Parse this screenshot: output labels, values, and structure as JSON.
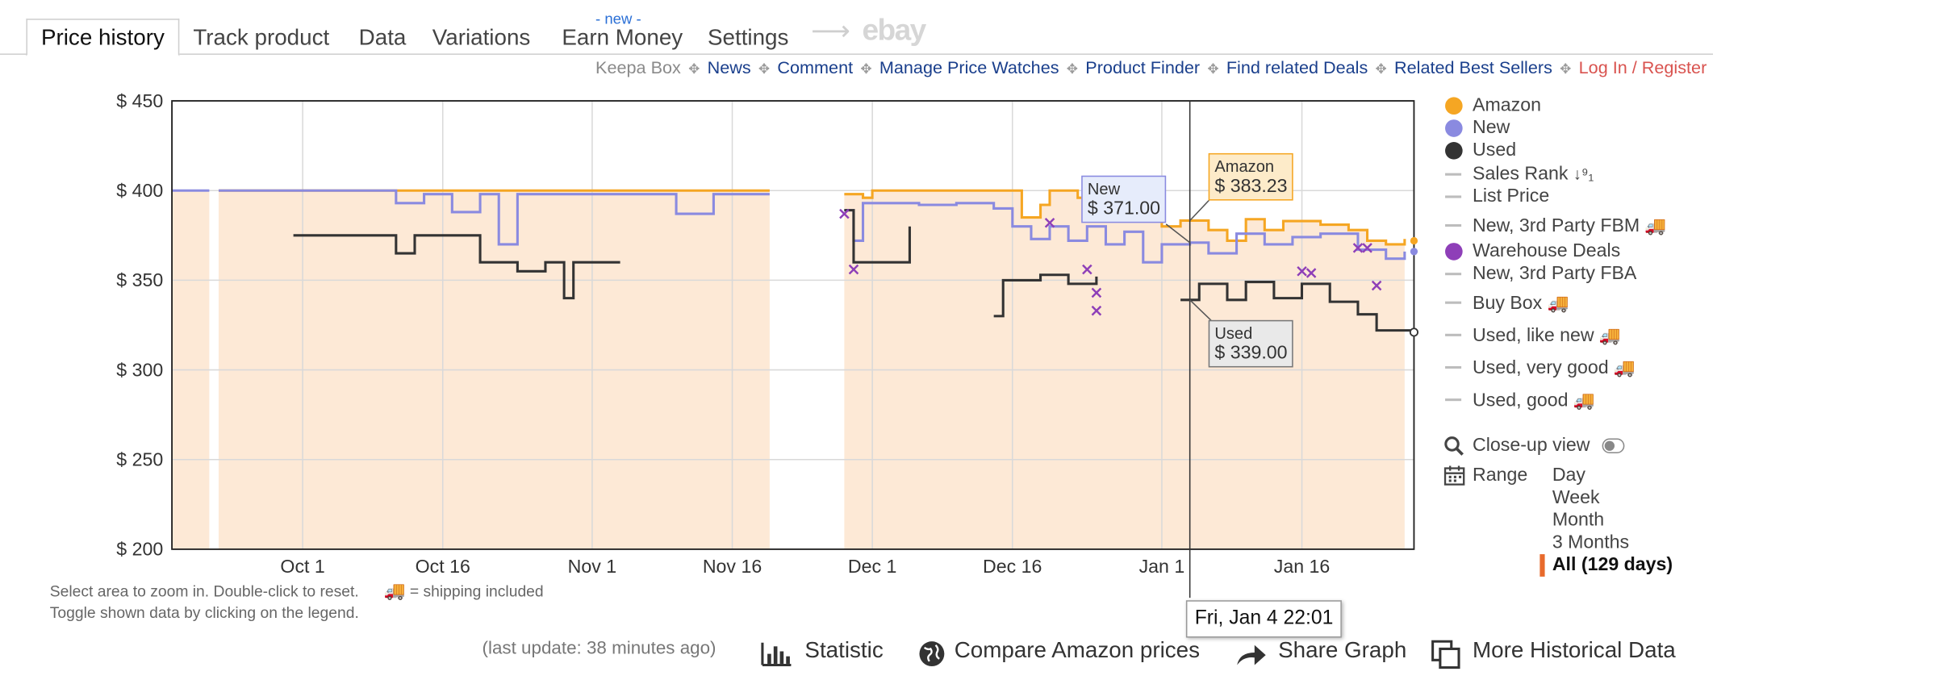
{
  "tabs": {
    "price_history": "Price history",
    "track_product": "Track product",
    "data": "Data",
    "variations": "Variations",
    "earn_money": "Earn Money",
    "earn_money_badge": "- new -",
    "settings": "Settings",
    "ebay": "ebay"
  },
  "links": {
    "keepa_box": "Keepa Box",
    "news": "News",
    "comment": "Comment",
    "manage_price_watches": "Manage Price Watches",
    "product_finder": "Product Finder",
    "find_related_deals": "Find related Deals",
    "related_best_sellers": "Related Best Sellers",
    "login": "Log In / Register"
  },
  "legend": {
    "amazon": "Amazon",
    "new": "New",
    "used": "Used",
    "sales_rank": "Sales Rank",
    "list_price": "List Price",
    "new_3p_fbm": "New, 3rd Party FBM",
    "warehouse_deals": "Warehouse Deals",
    "new_3p_fba": "New, 3rd Party FBA",
    "buy_box": "Buy Box",
    "used_like_new": "Used, like new",
    "used_very_good": "Used, very good",
    "used_good": "Used, good",
    "close_up_view": "Close-up view",
    "range_label": "Range"
  },
  "range_options": [
    "Day",
    "Week",
    "Month",
    "3 Months",
    "All (129 days)"
  ],
  "range_selected": "All (129 days)",
  "notes": {
    "zoom": "Select area to zoom in. Double-click to reset.",
    "shipping": "= shipping included",
    "toggle": "Toggle shown data by clicking on the legend."
  },
  "bottom": {
    "last_update": "(last update: 38 minutes ago)",
    "statistic": "Statistic",
    "compare": "Compare Amazon prices",
    "share": "Share Graph",
    "more": "More Historical Data"
  },
  "tooltips": {
    "amazon_label": "Amazon",
    "amazon_value": "$ 383.23",
    "new_label": "New",
    "new_value": "$ 371.00",
    "used_label": "Used",
    "used_value": "$ 339.00",
    "date": "Fri, Jan 4 22:01"
  },
  "colors": {
    "amazon": "#f5a623",
    "new": "#8a8ae0",
    "used": "#333333",
    "warehouse": "#8e3fb8",
    "fill": "#fde9d6"
  },
  "chart_data": {
    "type": "line",
    "x_domain": [
      "2018-09-17",
      "2019-01-28"
    ],
    "ylim": [
      200,
      450
    ],
    "yticks": [
      200,
      250,
      300,
      350,
      400,
      450
    ],
    "ytick_labels": [
      "$ 200",
      "$ 250",
      "$ 300",
      "$ 350",
      "$ 400",
      "$ 450"
    ],
    "xticks": [
      {
        "date": "2018-10-01",
        "label": "Oct 1"
      },
      {
        "date": "2018-10-16",
        "label": "Oct 16"
      },
      {
        "date": "2018-11-01",
        "label": "Nov 1"
      },
      {
        "date": "2018-11-16",
        "label": "Nov 16"
      },
      {
        "date": "2018-12-01",
        "label": "Dec 1"
      },
      {
        "date": "2018-12-16",
        "label": "Dec 16"
      },
      {
        "date": "2019-01-01",
        "label": "Jan 1"
      },
      {
        "date": "2019-01-16",
        "label": "Jan 16"
      }
    ],
    "amazon_segments": [
      [
        [
          "2018-09-22",
          400
        ],
        [
          "2018-11-20",
          400
        ]
      ],
      [
        [
          "2018-11-28",
          398
        ],
        [
          "2018-11-30",
          396
        ],
        [
          "2018-12-01",
          400
        ],
        [
          "2018-12-16",
          400
        ],
        [
          "2018-12-17",
          385
        ],
        [
          "2018-12-19",
          392
        ],
        [
          "2018-12-20",
          400
        ],
        [
          "2018-12-23",
          396
        ],
        [
          "2018-12-26",
          395
        ],
        [
          "2018-12-28",
          386
        ],
        [
          "2018-12-30",
          390
        ],
        [
          "2019-01-01",
          380
        ],
        [
          "2019-01-03",
          383.23
        ],
        [
          "2019-01-06",
          378
        ],
        [
          "2019-01-08",
          372
        ],
        [
          "2019-01-10",
          384
        ],
        [
          "2019-01-12",
          378
        ],
        [
          "2019-01-14",
          383
        ],
        [
          "2019-01-18",
          381
        ],
        [
          "2019-01-21",
          378
        ],
        [
          "2019-01-23",
          372
        ],
        [
          "2019-01-25",
          370
        ],
        [
          "2019-01-27",
          373
        ]
      ]
    ],
    "new_segments": [
      [
        [
          "2018-09-17",
          400
        ],
        [
          "2018-09-21",
          400
        ]
      ],
      [
        [
          "2018-09-22",
          400
        ],
        [
          "2018-10-08",
          400
        ],
        [
          "2018-10-11",
          393
        ],
        [
          "2018-10-14",
          398
        ],
        [
          "2018-10-17",
          388
        ],
        [
          "2018-10-20",
          398
        ],
        [
          "2018-10-22",
          370
        ],
        [
          "2018-10-24",
          398
        ],
        [
          "2018-11-08",
          398
        ],
        [
          "2018-11-10",
          387
        ],
        [
          "2018-11-14",
          398
        ],
        [
          "2018-11-20",
          398
        ]
      ],
      [
        [
          "2018-11-28",
          389
        ],
        [
          "2018-11-29",
          372
        ],
        [
          "2018-11-30",
          393
        ],
        [
          "2018-12-06",
          392
        ],
        [
          "2018-12-10",
          393
        ],
        [
          "2018-12-14",
          390
        ],
        [
          "2018-12-16",
          380
        ],
        [
          "2018-12-18",
          373
        ],
        [
          "2018-12-20",
          380
        ],
        [
          "2018-12-22",
          372
        ],
        [
          "2018-12-24",
          380
        ],
        [
          "2018-12-26",
          370
        ],
        [
          "2018-12-28",
          377
        ],
        [
          "2018-12-30",
          360
        ],
        [
          "2019-01-01",
          370
        ],
        [
          "2019-01-04",
          371
        ],
        [
          "2019-01-06",
          365
        ],
        [
          "2019-01-09",
          376
        ],
        [
          "2019-01-12",
          370
        ],
        [
          "2019-01-15",
          374
        ],
        [
          "2019-01-18",
          376
        ],
        [
          "2019-01-22",
          367
        ],
        [
          "2019-01-25",
          362
        ],
        [
          "2019-01-27",
          366
        ]
      ]
    ],
    "used_segments": [
      [
        [
          "2018-09-30",
          375
        ],
        [
          "2018-10-09",
          375
        ],
        [
          "2018-10-11",
          365
        ],
        [
          "2018-10-13",
          375
        ],
        [
          "2018-10-18",
          375
        ],
        [
          "2018-10-20",
          360
        ],
        [
          "2018-10-24",
          355
        ],
        [
          "2018-10-27",
          360
        ],
        [
          "2018-10-29",
          340
        ],
        [
          "2018-10-30",
          360
        ],
        [
          "2018-11-04",
          360
        ]
      ],
      [
        [
          "2018-11-28",
          389
        ],
        [
          "2018-11-29",
          360
        ],
        [
          "2018-12-05",
          380
        ]
      ],
      [
        [
          "2018-12-14",
          330
        ],
        [
          "2018-12-15",
          350
        ],
        [
          "2018-12-19",
          353
        ],
        [
          "2018-12-22",
          348
        ],
        [
          "2018-12-25",
          352
        ]
      ],
      [
        [
          "2019-01-03",
          339
        ],
        [
          "2019-01-05",
          348
        ],
        [
          "2019-01-08",
          339
        ],
        [
          "2019-01-10",
          349
        ],
        [
          "2019-01-13",
          340
        ],
        [
          "2019-01-16",
          348
        ],
        [
          "2019-01-19",
          338
        ],
        [
          "2019-01-22",
          331
        ],
        [
          "2019-01-24",
          322
        ],
        [
          "2019-01-28",
          321
        ]
      ]
    ],
    "warehouse_points": [
      [
        "2018-11-28",
        387
      ],
      [
        "2018-11-29",
        356
      ],
      [
        "2018-12-20",
        382
      ],
      [
        "2018-12-24",
        356
      ],
      [
        "2018-12-25",
        343
      ],
      [
        "2018-12-25",
        333
      ],
      [
        "2019-01-16",
        355
      ],
      [
        "2019-01-17",
        354
      ],
      [
        "2019-01-22",
        368
      ],
      [
        "2019-01-23",
        368
      ],
      [
        "2019-01-24",
        347
      ]
    ],
    "crosshair_date": "2019-01-04"
  }
}
